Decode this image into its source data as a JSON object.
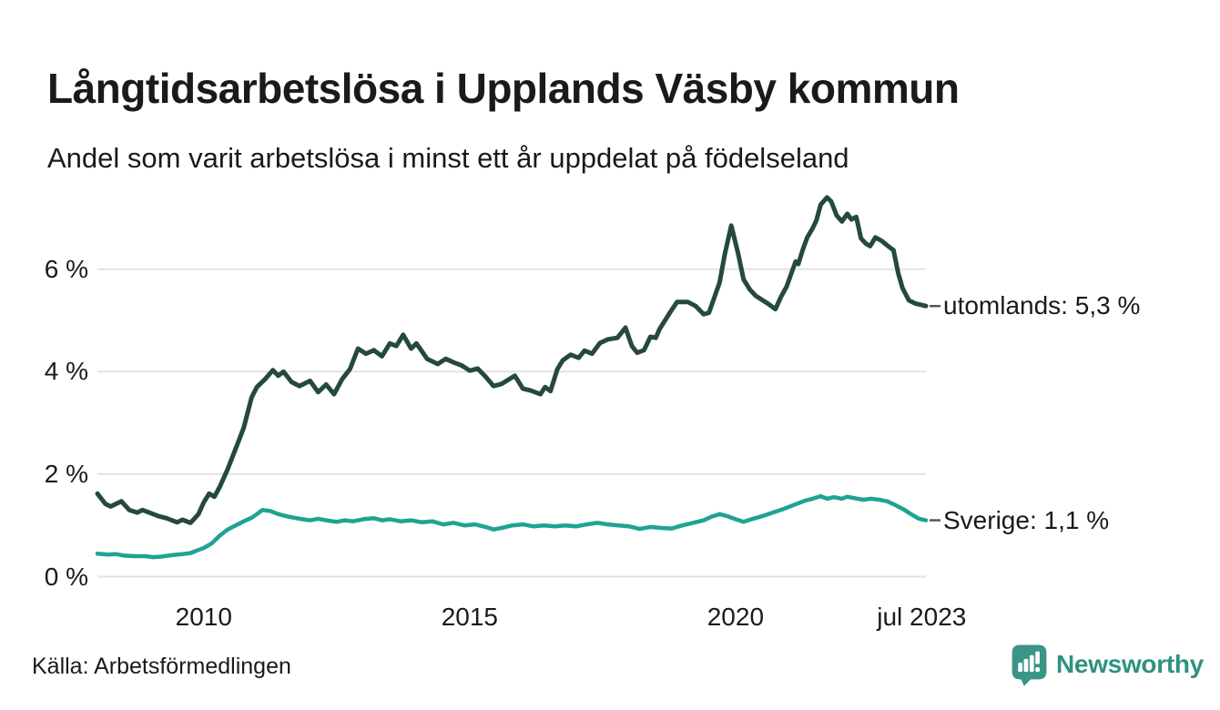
{
  "header": {
    "title": "Långtidsarbetslösa i Upplands Väsby kommun",
    "subtitle": "Andel som varit arbetslösa i minst ett år uppdelat på födelseland"
  },
  "footer": {
    "source": "Källa: Arbetsförmedlingen",
    "brand": "Newsworthy",
    "brand_color": "#2F9181",
    "brand_icon_color": "#3B9587"
  },
  "chart_data": {
    "type": "line",
    "title": "Långtidsarbetslösa i Upplands Väsby kommun",
    "subtitle": "Andel som varit arbetslösa i minst ett år uppdelat på födelseland",
    "unit": "%",
    "grid": true,
    "legend_position": "end-of-line-labels-right",
    "background": "#ffffff",
    "gridline_color": "#e3e3e3",
    "leader_dash_color": "#555555",
    "x_axis": {
      "range": [
        2008.0,
        2023.58
      ],
      "ticks": [
        {
          "t": 2010.0,
          "label": "2010"
        },
        {
          "t": 2015.0,
          "label": "2015"
        },
        {
          "t": 2020.0,
          "label": "2020"
        },
        {
          "t": 2023.5,
          "label": "jul 2023"
        }
      ]
    },
    "y_axis": {
      "range": [
        0,
        7.8
      ],
      "ticks": [
        {
          "v": 0,
          "label": "0 %"
        },
        {
          "v": 2,
          "label": "2 %"
        },
        {
          "v": 4,
          "label": "4 %"
        },
        {
          "v": 6,
          "label": "6 %"
        }
      ]
    },
    "series": [
      {
        "name": "utomlands",
        "end_label": "utomlands: 5,3 %",
        "last_value_text": "5,3 %",
        "color": "#26493E",
        "stroke_width": 5,
        "points": [
          [
            2008.0,
            1.62
          ],
          [
            2008.15,
            1.42
          ],
          [
            2008.25,
            1.37
          ],
          [
            2008.45,
            1.47
          ],
          [
            2008.6,
            1.3
          ],
          [
            2008.75,
            1.25
          ],
          [
            2008.85,
            1.3
          ],
          [
            2009.0,
            1.24
          ],
          [
            2009.15,
            1.18
          ],
          [
            2009.3,
            1.14
          ],
          [
            2009.5,
            1.06
          ],
          [
            2009.6,
            1.11
          ],
          [
            2009.75,
            1.05
          ],
          [
            2009.9,
            1.22
          ],
          [
            2010.0,
            1.45
          ],
          [
            2010.1,
            1.62
          ],
          [
            2010.2,
            1.56
          ],
          [
            2010.3,
            1.75
          ],
          [
            2010.45,
            2.1
          ],
          [
            2010.6,
            2.5
          ],
          [
            2010.75,
            2.9
          ],
          [
            2010.9,
            3.5
          ],
          [
            2011.0,
            3.7
          ],
          [
            2011.15,
            3.85
          ],
          [
            2011.3,
            4.03
          ],
          [
            2011.4,
            3.92
          ],
          [
            2011.5,
            4.0
          ],
          [
            2011.65,
            3.8
          ],
          [
            2011.8,
            3.72
          ],
          [
            2012.0,
            3.82
          ],
          [
            2012.15,
            3.6
          ],
          [
            2012.3,
            3.75
          ],
          [
            2012.45,
            3.56
          ],
          [
            2012.6,
            3.85
          ],
          [
            2012.75,
            4.05
          ],
          [
            2012.9,
            4.45
          ],
          [
            2013.05,
            4.35
          ],
          [
            2013.2,
            4.42
          ],
          [
            2013.35,
            4.3
          ],
          [
            2013.5,
            4.55
          ],
          [
            2013.62,
            4.5
          ],
          [
            2013.75,
            4.72
          ],
          [
            2013.9,
            4.45
          ],
          [
            2014.0,
            4.55
          ],
          [
            2014.2,
            4.25
          ],
          [
            2014.4,
            4.15
          ],
          [
            2014.55,
            4.25
          ],
          [
            2014.7,
            4.18
          ],
          [
            2014.85,
            4.12
          ],
          [
            2015.0,
            4.02
          ],
          [
            2015.15,
            4.06
          ],
          [
            2015.3,
            3.9
          ],
          [
            2015.45,
            3.72
          ],
          [
            2015.6,
            3.76
          ],
          [
            2015.85,
            3.92
          ],
          [
            2016.0,
            3.67
          ],
          [
            2016.15,
            3.63
          ],
          [
            2016.33,
            3.56
          ],
          [
            2016.42,
            3.7
          ],
          [
            2016.52,
            3.62
          ],
          [
            2016.65,
            4.05
          ],
          [
            2016.75,
            4.22
          ],
          [
            2016.9,
            4.33
          ],
          [
            2017.05,
            4.27
          ],
          [
            2017.16,
            4.41
          ],
          [
            2017.3,
            4.35
          ],
          [
            2017.45,
            4.56
          ],
          [
            2017.6,
            4.63
          ],
          [
            2017.78,
            4.66
          ],
          [
            2017.93,
            4.86
          ],
          [
            2018.05,
            4.5
          ],
          [
            2018.15,
            4.37
          ],
          [
            2018.28,
            4.42
          ],
          [
            2018.4,
            4.68
          ],
          [
            2018.5,
            4.66
          ],
          [
            2018.57,
            4.83
          ],
          [
            2018.77,
            5.16
          ],
          [
            2018.9,
            5.36
          ],
          [
            2019.1,
            5.36
          ],
          [
            2019.25,
            5.28
          ],
          [
            2019.4,
            5.12
          ],
          [
            2019.5,
            5.15
          ],
          [
            2019.7,
            5.74
          ],
          [
            2019.8,
            6.3
          ],
          [
            2019.92,
            6.85
          ],
          [
            2020.05,
            6.3
          ],
          [
            2020.15,
            5.8
          ],
          [
            2020.27,
            5.6
          ],
          [
            2020.38,
            5.48
          ],
          [
            2020.5,
            5.4
          ],
          [
            2020.62,
            5.32
          ],
          [
            2020.75,
            5.22
          ],
          [
            2020.85,
            5.45
          ],
          [
            2020.96,
            5.66
          ],
          [
            2021.05,
            5.92
          ],
          [
            2021.13,
            6.15
          ],
          [
            2021.18,
            6.1
          ],
          [
            2021.27,
            6.4
          ],
          [
            2021.35,
            6.62
          ],
          [
            2021.45,
            6.8
          ],
          [
            2021.52,
            6.95
          ],
          [
            2021.6,
            7.26
          ],
          [
            2021.72,
            7.4
          ],
          [
            2021.8,
            7.32
          ],
          [
            2021.9,
            7.05
          ],
          [
            2022.0,
            6.93
          ],
          [
            2022.1,
            7.08
          ],
          [
            2022.18,
            6.97
          ],
          [
            2022.27,
            7.02
          ],
          [
            2022.36,
            6.6
          ],
          [
            2022.45,
            6.5
          ],
          [
            2022.53,
            6.45
          ],
          [
            2022.63,
            6.62
          ],
          [
            2022.75,
            6.55
          ],
          [
            2022.87,
            6.45
          ],
          [
            2022.97,
            6.37
          ],
          [
            2023.06,
            5.92
          ],
          [
            2023.14,
            5.63
          ],
          [
            2023.26,
            5.39
          ],
          [
            2023.38,
            5.33
          ],
          [
            2023.5,
            5.3
          ],
          [
            2023.58,
            5.28
          ]
        ]
      },
      {
        "name": "Sverige",
        "end_label": "Sverige: 1,1 %",
        "last_value_text": "1,1 %",
        "color": "#1FA392",
        "stroke_width": 4.5,
        "points": [
          [
            2008.0,
            0.45
          ],
          [
            2008.2,
            0.43
          ],
          [
            2008.35,
            0.44
          ],
          [
            2008.5,
            0.41
          ],
          [
            2008.7,
            0.4
          ],
          [
            2008.9,
            0.4
          ],
          [
            2009.05,
            0.38
          ],
          [
            2009.2,
            0.39
          ],
          [
            2009.4,
            0.42
          ],
          [
            2009.6,
            0.44
          ],
          [
            2009.75,
            0.46
          ],
          [
            2009.9,
            0.52
          ],
          [
            2010.0,
            0.56
          ],
          [
            2010.15,
            0.65
          ],
          [
            2010.3,
            0.8
          ],
          [
            2010.45,
            0.92
          ],
          [
            2010.6,
            1.0
          ],
          [
            2010.75,
            1.08
          ],
          [
            2010.9,
            1.15
          ],
          [
            2011.0,
            1.22
          ],
          [
            2011.1,
            1.3
          ],
          [
            2011.25,
            1.28
          ],
          [
            2011.4,
            1.22
          ],
          [
            2011.55,
            1.18
          ],
          [
            2011.7,
            1.15
          ],
          [
            2011.85,
            1.12
          ],
          [
            2012.0,
            1.1
          ],
          [
            2012.15,
            1.13
          ],
          [
            2012.3,
            1.1
          ],
          [
            2012.5,
            1.07
          ],
          [
            2012.65,
            1.1
          ],
          [
            2012.8,
            1.08
          ],
          [
            2013.0,
            1.12
          ],
          [
            2013.2,
            1.14
          ],
          [
            2013.35,
            1.1
          ],
          [
            2013.5,
            1.12
          ],
          [
            2013.7,
            1.08
          ],
          [
            2013.9,
            1.1
          ],
          [
            2014.1,
            1.06
          ],
          [
            2014.3,
            1.08
          ],
          [
            2014.5,
            1.02
          ],
          [
            2014.7,
            1.05
          ],
          [
            2014.9,
            1.0
          ],
          [
            2015.1,
            1.02
          ],
          [
            2015.3,
            0.97
          ],
          [
            2015.45,
            0.92
          ],
          [
            2015.6,
            0.95
          ],
          [
            2015.8,
            1.0
          ],
          [
            2016.0,
            1.02
          ],
          [
            2016.2,
            0.98
          ],
          [
            2016.4,
            1.0
          ],
          [
            2016.6,
            0.98
          ],
          [
            2016.8,
            1.0
          ],
          [
            2017.0,
            0.98
          ],
          [
            2017.2,
            1.02
          ],
          [
            2017.4,
            1.05
          ],
          [
            2017.6,
            1.02
          ],
          [
            2017.8,
            1.0
          ],
          [
            2018.0,
            0.98
          ],
          [
            2018.2,
            0.93
          ],
          [
            2018.4,
            0.97
          ],
          [
            2018.6,
            0.95
          ],
          [
            2018.8,
            0.94
          ],
          [
            2019.0,
            1.0
          ],
          [
            2019.2,
            1.05
          ],
          [
            2019.4,
            1.1
          ],
          [
            2019.55,
            1.17
          ],
          [
            2019.7,
            1.22
          ],
          [
            2019.85,
            1.18
          ],
          [
            2020.0,
            1.12
          ],
          [
            2020.15,
            1.07
          ],
          [
            2020.3,
            1.12
          ],
          [
            2020.5,
            1.18
          ],
          [
            2020.7,
            1.25
          ],
          [
            2020.9,
            1.32
          ],
          [
            2021.1,
            1.4
          ],
          [
            2021.3,
            1.48
          ],
          [
            2021.45,
            1.52
          ],
          [
            2021.6,
            1.57
          ],
          [
            2021.72,
            1.52
          ],
          [
            2021.85,
            1.55
          ],
          [
            2022.0,
            1.52
          ],
          [
            2022.1,
            1.56
          ],
          [
            2022.25,
            1.53
          ],
          [
            2022.4,
            1.5
          ],
          [
            2022.55,
            1.52
          ],
          [
            2022.7,
            1.5
          ],
          [
            2022.85,
            1.47
          ],
          [
            2023.0,
            1.4
          ],
          [
            2023.15,
            1.32
          ],
          [
            2023.3,
            1.22
          ],
          [
            2023.45,
            1.13
          ],
          [
            2023.58,
            1.1
          ]
        ]
      }
    ]
  }
}
